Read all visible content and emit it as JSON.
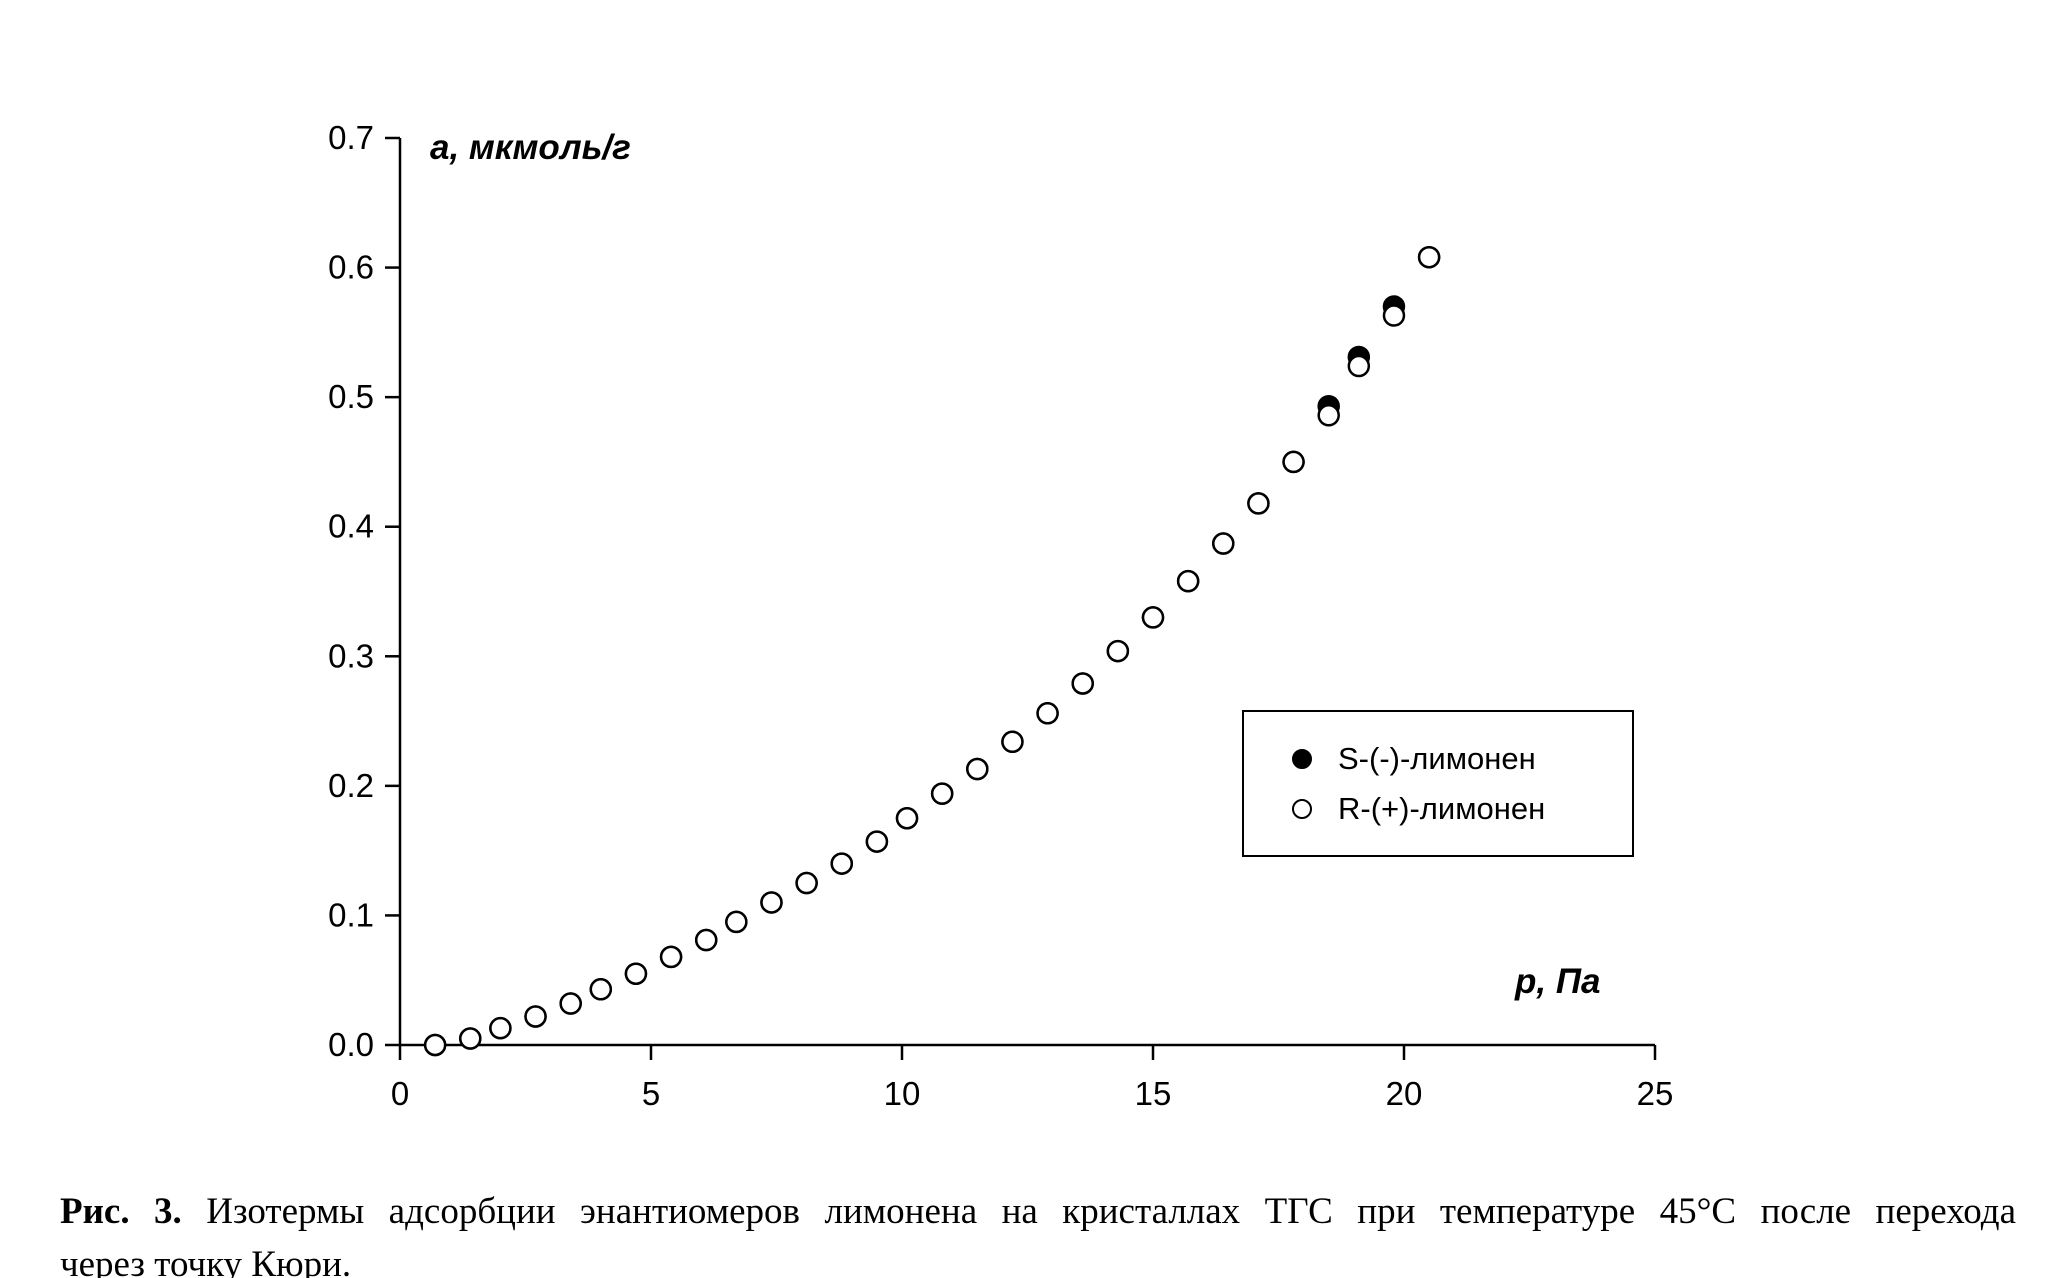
{
  "chart_data": {
    "type": "scatter",
    "title": "",
    "xlabel": "p, Па",
    "ylabel": "a, мкмоль/г",
    "xlim": [
      0,
      25
    ],
    "ylim": [
      0,
      0.7
    ],
    "xticks": [
      "0",
      "5",
      "10",
      "15",
      "20",
      "25"
    ],
    "yticks": [
      "0.0",
      "0.1",
      "0.2",
      "0.3",
      "0.4",
      "0.5",
      "0.6",
      "0.7"
    ],
    "grid": false,
    "legend_position": "inside-right",
    "series": [
      {
        "name": "S-(-)-лимонен",
        "marker": "filled-circle",
        "color": "#000000",
        "x": [
          0.7,
          1.4,
          2.0,
          2.7,
          3.4,
          4.0,
          4.7,
          5.4,
          6.1,
          6.7,
          7.4,
          8.1,
          8.8,
          9.5,
          10.1,
          10.8,
          11.5,
          12.2,
          12.9,
          13.6,
          14.3,
          15.0,
          15.7,
          16.4,
          17.1,
          17.8,
          18.5,
          19.1,
          19.8,
          20.5
        ],
        "y": [
          0.0,
          0.005,
          0.013,
          0.022,
          0.032,
          0.043,
          0.055,
          0.068,
          0.081,
          0.095,
          0.11,
          0.125,
          0.14,
          0.157,
          0.175,
          0.194,
          0.213,
          0.234,
          0.256,
          0.279,
          0.304,
          0.33,
          0.358,
          0.387,
          0.418,
          0.45,
          0.493,
          0.531,
          0.57,
          0.608
        ]
      },
      {
        "name": "R-(+)-лимонен",
        "marker": "open-circle",
        "color": "#000000",
        "x": [
          0.7,
          1.4,
          2.0,
          2.7,
          3.4,
          4.0,
          4.7,
          5.4,
          6.1,
          6.7,
          7.4,
          8.1,
          8.8,
          9.5,
          10.1,
          10.8,
          11.5,
          12.2,
          12.9,
          13.6,
          14.3,
          15.0,
          15.7,
          16.4,
          17.1,
          17.8,
          18.5,
          19.1,
          19.8,
          20.5
        ],
        "y": [
          0.0,
          0.005,
          0.013,
          0.022,
          0.032,
          0.043,
          0.055,
          0.068,
          0.081,
          0.095,
          0.11,
          0.125,
          0.14,
          0.157,
          0.175,
          0.194,
          0.213,
          0.234,
          0.256,
          0.279,
          0.304,
          0.33,
          0.358,
          0.387,
          0.418,
          0.45,
          0.486,
          0.524,
          0.563,
          0.608
        ]
      }
    ]
  },
  "caption": {
    "label": "Рис. 3.",
    "text_line1": "Изотермы адсорбции энантиомеров лимонена на кристаллах ТГС при температуре 45°С после перехода",
    "text_line2": "через точку Кюри."
  }
}
